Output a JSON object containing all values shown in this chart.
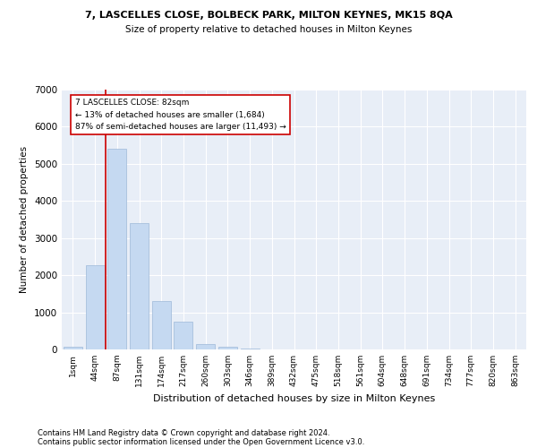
{
  "title": "7, LASCELLES CLOSE, BOLBECK PARK, MILTON KEYNES, MK15 8QA",
  "subtitle": "Size of property relative to detached houses in Milton Keynes",
  "xlabel": "Distribution of detached houses by size in Milton Keynes",
  "ylabel": "Number of detached properties",
  "footnote1": "Contains HM Land Registry data © Crown copyright and database right 2024.",
  "footnote2": "Contains public sector information licensed under the Open Government Licence v3.0.",
  "annotation_title": "7 LASCELLES CLOSE: 82sqm",
  "annotation_line1": "← 13% of detached houses are smaller (1,684)",
  "annotation_line2": "87% of semi-detached houses are larger (11,493) →",
  "bar_color": "#c5d9f1",
  "bar_edge_color": "#9db8d9",
  "vline_color": "#cc0000",
  "categories": [
    "1sqm",
    "44sqm",
    "87sqm",
    "131sqm",
    "174sqm",
    "217sqm",
    "260sqm",
    "303sqm",
    "346sqm",
    "389sqm",
    "432sqm",
    "475sqm",
    "518sqm",
    "561sqm",
    "604sqm",
    "648sqm",
    "691sqm",
    "734sqm",
    "777sqm",
    "820sqm",
    "863sqm"
  ],
  "values": [
    70,
    2270,
    5400,
    3400,
    1300,
    750,
    150,
    80,
    30,
    5,
    2,
    1,
    0,
    0,
    0,
    0,
    0,
    0,
    0,
    0,
    0
  ],
  "ylim": [
    0,
    7000
  ],
  "yticks": [
    0,
    1000,
    2000,
    3000,
    4000,
    5000,
    6000,
    7000
  ],
  "bg_color": "#e8eef7",
  "vline_bar_index": 1.5
}
